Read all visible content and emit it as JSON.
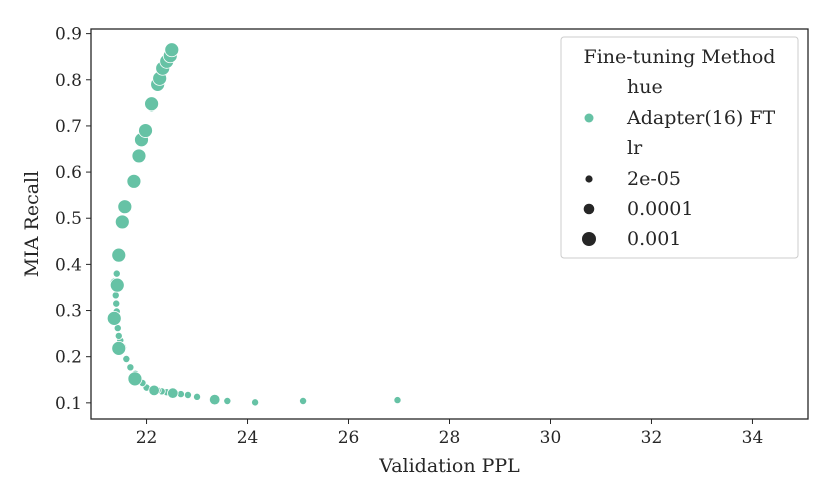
{
  "chart_data": {
    "type": "scatter",
    "title": "",
    "xlabel": "Validation PPL",
    "ylabel": "MIA Recall",
    "xlim": [
      20.9,
      35.1
    ],
    "ylim": [
      0.065,
      0.91
    ],
    "xticks": [
      22,
      24,
      26,
      28,
      30,
      32,
      34
    ],
    "yticks": [
      0.1,
      0.2,
      0.3,
      0.4,
      0.5,
      0.6,
      0.7,
      0.8,
      0.9
    ],
    "xtick_labels": [
      "22",
      "24",
      "26",
      "28",
      "30",
      "32",
      "34"
    ],
    "ytick_labels": [
      "0.1",
      "0.2",
      "0.3",
      "0.4",
      "0.5",
      "0.6",
      "0.7",
      "0.8",
      "0.9"
    ],
    "grid": false,
    "color": "#66c2a5",
    "legend": {
      "title": "Fine-tuning Method",
      "placement": "top-right",
      "hue_header": "hue",
      "hue_label": "Adapter(16) FT",
      "size_header": "lr",
      "size_labels": [
        "2e-05",
        "0.0001",
        "0.001"
      ]
    },
    "series": [
      {
        "name": "Adapter(16) FT",
        "lr": "2e-05",
        "points": [
          [
            26.97,
            0.106
          ],
          [
            25.1,
            0.104
          ],
          [
            24.15,
            0.101
          ],
          [
            23.6,
            0.104
          ],
          [
            23.3,
            0.107
          ],
          [
            23.0,
            0.113
          ],
          [
            22.82,
            0.117
          ],
          [
            22.68,
            0.119
          ],
          [
            22.4,
            0.123
          ],
          [
            22.3,
            0.125
          ],
          [
            22.22,
            0.127
          ],
          [
            22.0,
            0.133
          ],
          [
            21.92,
            0.143
          ],
          [
            21.83,
            0.155
          ],
          [
            21.78,
            0.163
          ],
          [
            21.68,
            0.177
          ],
          [
            21.6,
            0.195
          ],
          [
            21.52,
            0.22
          ],
          [
            21.48,
            0.235
          ],
          [
            21.45,
            0.245
          ],
          [
            21.43,
            0.262
          ],
          [
            21.42,
            0.28
          ],
          [
            21.41,
            0.298
          ],
          [
            21.4,
            0.315
          ],
          [
            21.39,
            0.333
          ],
          [
            21.39,
            0.348
          ],
          [
            21.4,
            0.362
          ],
          [
            21.41,
            0.38
          ]
        ]
      },
      {
        "name": "Adapter(16) FT",
        "lr": "0.0001",
        "points": [
          [
            23.35,
            0.107
          ],
          [
            22.52,
            0.121
          ],
          [
            22.15,
            0.127
          ],
          [
            21.8,
            0.155
          ],
          [
            21.5,
            0.22
          ],
          [
            21.38,
            0.285
          ],
          [
            21.38,
            0.36
          ],
          [
            21.5,
            0.49
          ],
          [
            21.55,
            0.525
          ],
          [
            21.75,
            0.58
          ],
          [
            21.85,
            0.635
          ],
          [
            21.88,
            0.67
          ],
          [
            22.0,
            0.69
          ],
          [
            22.1,
            0.742
          ],
          [
            22.2,
            0.79
          ],
          [
            22.3,
            0.812
          ],
          [
            22.36,
            0.828
          ],
          [
            22.42,
            0.838
          ],
          [
            22.46,
            0.848
          ],
          [
            22.5,
            0.858
          ]
        ]
      },
      {
        "name": "Adapter(16) FT",
        "lr": "0.001",
        "points": [
          [
            21.77,
            0.152
          ],
          [
            21.45,
            0.218
          ],
          [
            21.36,
            0.283
          ],
          [
            21.42,
            0.355
          ],
          [
            21.45,
            0.42
          ],
          [
            21.52,
            0.492
          ],
          [
            21.57,
            0.525
          ],
          [
            21.75,
            0.58
          ],
          [
            21.85,
            0.635
          ],
          [
            21.9,
            0.67
          ],
          [
            21.98,
            0.69
          ],
          [
            22.1,
            0.748
          ],
          [
            22.22,
            0.79
          ],
          [
            22.26,
            0.803
          ],
          [
            22.32,
            0.825
          ],
          [
            22.4,
            0.84
          ],
          [
            22.47,
            0.852
          ],
          [
            22.5,
            0.865
          ]
        ]
      }
    ]
  }
}
